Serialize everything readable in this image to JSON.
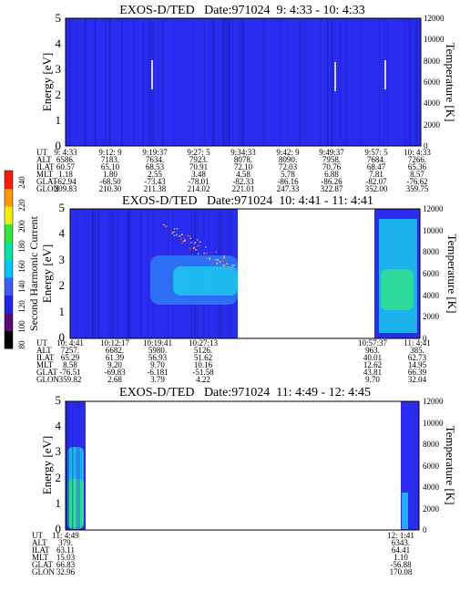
{
  "chart_data": [
    {
      "type": "heatmap",
      "title": "EXOS-D/TED   Date:971024  9: 4:33 - 10: 4:33",
      "ylabel": "Energy [eV]",
      "ylabel_right": "Temperature [K]",
      "ylim": [
        0,
        5
      ],
      "ylim_right": [
        0,
        12000
      ],
      "y_ticks": [
        "0",
        "1",
        "2",
        "3",
        "4",
        "5"
      ],
      "y_right_ticks": [
        "0",
        "2000",
        "4000",
        "6000",
        "8000",
        "10000",
        "12000"
      ],
      "row_labels": [
        "UT",
        "ALT",
        "ILAT",
        "MLT",
        "GLAT",
        "GLON"
      ],
      "columns": [
        [
          "9: 4:33",
          "6586.",
          "60.57",
          "1.18",
          "-62.94",
          "209.83"
        ],
        [
          "9:12: 9",
          "7183.",
          "65.10",
          "1.80",
          "-68.50",
          "210.30"
        ],
        [
          "9:19:37",
          "7634.",
          "68.53",
          "2.55",
          "-73.43",
          "211.38"
        ],
        [
          "9:27: 5",
          "7923.",
          "70.91",
          "3.48",
          "-78.01",
          "214.02"
        ],
        [
          "9:34:33",
          "8078.",
          "72.10",
          "4.58",
          "-82.33",
          "221.01"
        ],
        [
          "9:42: 9",
          "8090.",
          "72.03",
          "5.78",
          "-86.16",
          "247.33"
        ],
        [
          "9:49:37",
          "7958.",
          "70.76",
          "6.88",
          "-86.26",
          "322.87"
        ],
        [
          "9:57: 5",
          "7684.",
          "68.47",
          "7.81",
          "-82.07",
          "352.00"
        ],
        [
          "10: 4:33",
          "7266.",
          "65.36",
          "8.57",
          "-76.62",
          "359.75"
        ]
      ]
    },
    {
      "type": "heatmap",
      "title": "EXOS-D/TED   Date:971024  10: 4:41 - 11: 4:41",
      "ylabel": "Energy [eV]",
      "ylabel_right": "Temperature [K]",
      "ylim": [
        0,
        5
      ],
      "ylim_right": [
        0,
        12000
      ],
      "y_ticks": [
        "0",
        "1",
        "2",
        "3",
        "4",
        "5"
      ],
      "y_right_ticks": [
        "0",
        "2000",
        "4000",
        "6000",
        "8000",
        "10000",
        "12000"
      ],
      "row_labels": [
        "UT",
        "ALT",
        "ILAT",
        "MLT",
        "GLAT",
        "GLON"
      ],
      "columns": [
        [
          "10: 4:41",
          "7257.",
          "65.29",
          "8.58",
          "-76.51",
          "359.82"
        ],
        [
          "10:12:17",
          "6682.",
          "61.39",
          "9.20",
          "-69.83",
          "2.68"
        ],
        [
          "10:19:41",
          "5980.",
          "56.93",
          "9.70",
          "-6.181",
          "3.79"
        ],
        [
          "10:27:13",
          "5126.",
          "51.62",
          "10.16",
          "-51.58",
          "4.22"
        ],
        [
          "10:57:37",
          "963.",
          "40.01",
          "12.62",
          "43.81",
          "9.70"
        ],
        [
          "11: 4:41",
          "385.",
          "62.73",
          "14.95",
          "66.39",
          "32.04"
        ]
      ]
    },
    {
      "type": "heatmap",
      "title": "EXOS-D/TED   Date:971024  11: 4:49 - 12: 4:45",
      "ylabel": "Energy [eV]",
      "ylabel_right": "Temperature [K]",
      "ylim": [
        0,
        5
      ],
      "ylim_right": [
        0,
        12000
      ],
      "y_ticks": [
        "0",
        "1",
        "2",
        "3",
        "4",
        "5"
      ],
      "y_right_ticks": [
        "0",
        "2000",
        "4000",
        "6000",
        "8000",
        "10000",
        "12000"
      ],
      "row_labels": [
        "UT",
        "ALT",
        "ILAT",
        "MLT",
        "GLAT",
        "GLON"
      ],
      "columns": [
        [
          "11: 4:49",
          "379.",
          "63.11",
          "15.03",
          "66.83",
          "32.96"
        ],
        [
          "12: 1:41",
          "6343.",
          "64.41",
          "1.10",
          "-56.88",
          "170.08"
        ]
      ]
    }
  ],
  "colorbar": {
    "label": "Second Harmonic Current",
    "ticks": [
      "80",
      "100",
      "120",
      "140",
      "160",
      "180",
      "200",
      "220",
      "240"
    ],
    "colors": [
      "#000000",
      "#5a0a78",
      "#2222ee",
      "#3d5cff",
      "#00c8ff",
      "#00e6a8",
      "#33e633",
      "#f0f000",
      "#ff9900",
      "#ff1a00"
    ]
  },
  "palette": {
    "background_blue": "#2a2df0",
    "stripe_blue": "#1e24c8",
    "band_blue": "#2f7df6",
    "band_cyan": "#19d3ee",
    "band_green": "#2fe08a"
  }
}
